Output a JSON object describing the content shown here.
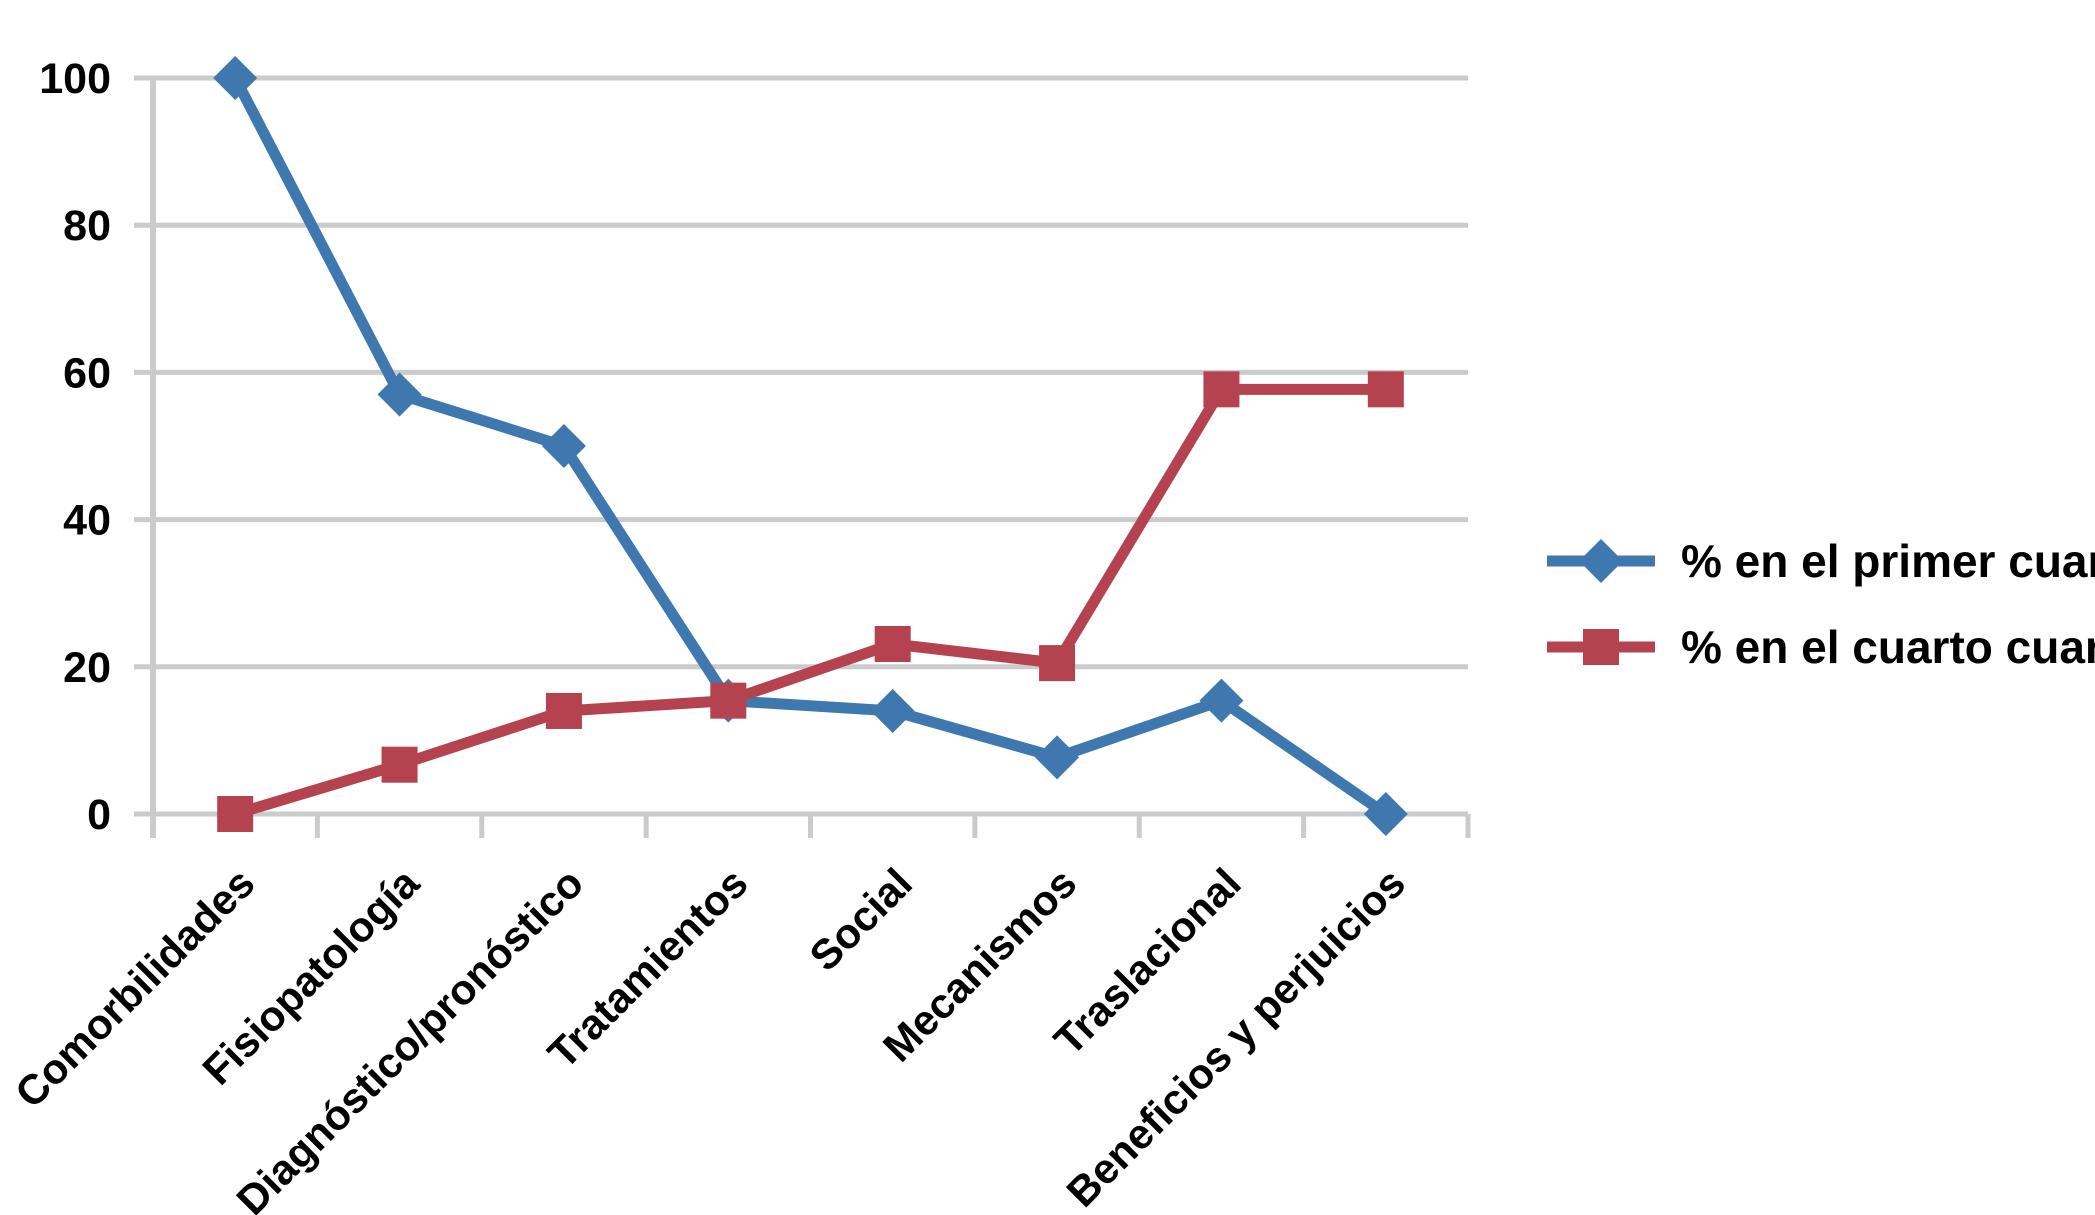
{
  "chart_data": {
    "type": "line",
    "title": "",
    "xlabel": "",
    "ylabel": "",
    "categories": [
      "Comorbilidades",
      "Fisiopatología",
      "Diagnóstico/pronóstico",
      "Tratamientos",
      "Social",
      "Mecanismos",
      "Traslacional",
      "Beneficios y perjuicios"
    ],
    "series": [
      {
        "name": "% en el primer cuartil",
        "marker": "diamond",
        "color": "#3E78AF",
        "values": [
          100,
          57,
          50,
          15.4,
          14,
          7.7,
          15.4,
          0
        ]
      },
      {
        "name": "% en el cuarto cuartil",
        "marker": "square",
        "color": "#B4424F",
        "values": [
          0,
          6.7,
          14,
          15.4,
          23.1,
          20.5,
          57.7,
          57.7
        ]
      }
    ],
    "ylim": [
      0,
      100
    ],
    "yticks": [
      0,
      20,
      40,
      60,
      80,
      100
    ],
    "grid": true,
    "legend_position": "right",
    "axis_color": "#CBCBCB",
    "text_color": "#000000",
    "background_color": "#FFFFFF"
  }
}
